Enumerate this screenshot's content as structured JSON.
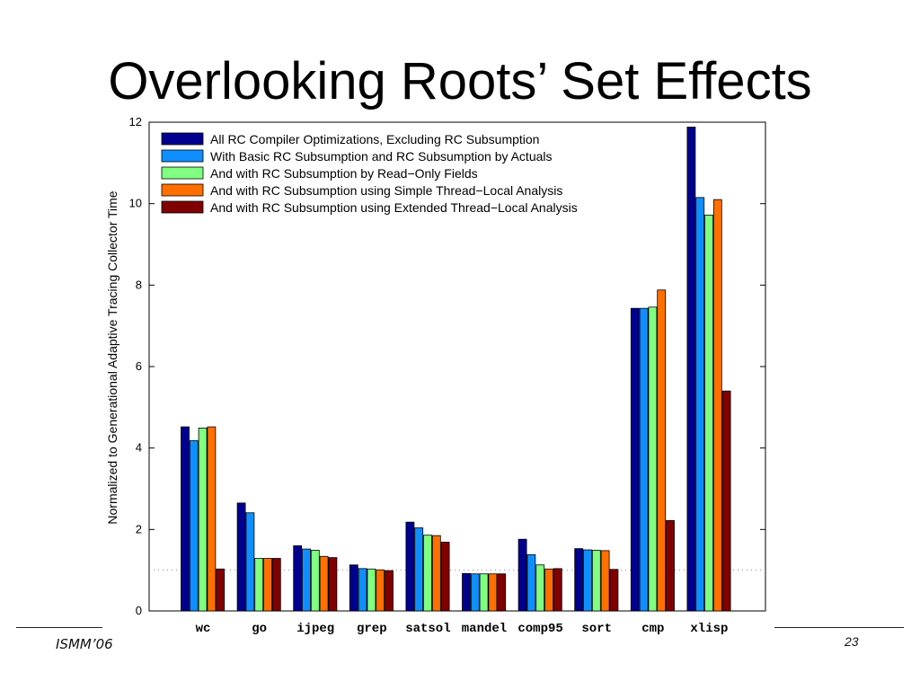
{
  "slide": {
    "title": "Overlooking Roots’ Set Effects",
    "footer_left": "ISMM’06",
    "page_number": "23"
  },
  "chart_data": {
    "type": "bar",
    "ylabel": "Normalized to Generational Adaptive Tracing Collector Time",
    "xlabel": "",
    "ylim": [
      0,
      12
    ],
    "yticks": [
      0,
      2,
      4,
      6,
      8,
      10,
      12
    ],
    "reference_line": 1,
    "legend_position": "top-left",
    "categories": [
      "wc",
      "go",
      "ijpeg",
      "grep",
      "satsol",
      "mandel",
      "comp95",
      "sort",
      "cmp",
      "xlisp"
    ],
    "series": [
      {
        "name": "All RC Compiler Optimizations, Excluding RC Subsumption",
        "color": "#00008f",
        "values": [
          4.52,
          2.65,
          1.6,
          1.13,
          2.18,
          0.92,
          1.76,
          1.53,
          7.43,
          11.88
        ]
      },
      {
        "name": "With Basic RC Subsumption and RC Subsumption by Actuals",
        "color": "#0f8fff",
        "values": [
          4.18,
          2.41,
          1.52,
          1.04,
          2.04,
          0.91,
          1.38,
          1.5,
          7.43,
          10.15
        ]
      },
      {
        "name": "And with RC Subsumption by Read−Only Fields",
        "color": "#80ff80",
        "values": [
          4.49,
          1.29,
          1.49,
          1.03,
          1.86,
          0.91,
          1.13,
          1.49,
          7.46,
          9.72
        ]
      },
      {
        "name": "And with RC Subsumption using Simple Thread−Local Analysis",
        "color": "#ff7000",
        "values": [
          4.52,
          1.29,
          1.34,
          1.01,
          1.85,
          0.91,
          1.03,
          1.48,
          7.88,
          10.1
        ]
      },
      {
        "name": "And with RC Subsumption using Extended Thread−Local Analysis",
        "color": "#800000",
        "values": [
          1.03,
          1.29,
          1.31,
          0.99,
          1.69,
          0.91,
          1.04,
          1.02,
          2.22,
          5.4
        ]
      }
    ]
  }
}
